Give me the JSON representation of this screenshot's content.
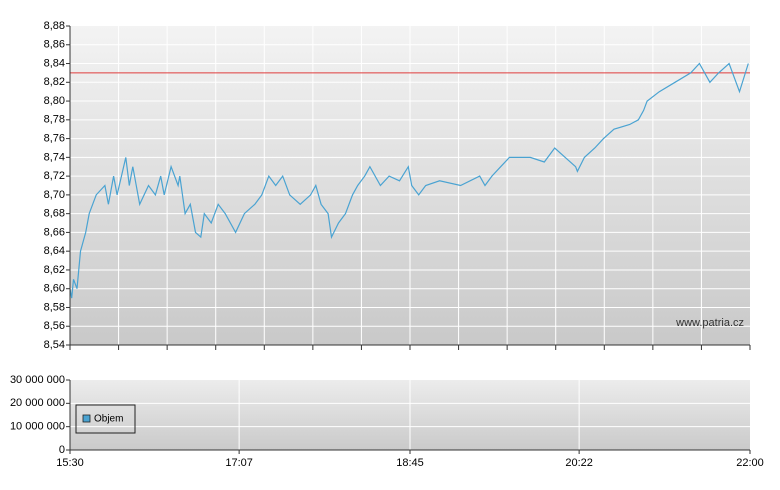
{
  "chart_data": [
    {
      "type": "line",
      "watermark": "www.patria.cz",
      "xlim": [
        "15:30",
        "22:00"
      ],
      "ylim": [
        8.54,
        8.88
      ],
      "yticks": [
        {
          "value": 8.54,
          "label": "8,54"
        },
        {
          "value": 8.56,
          "label": "8,56"
        },
        {
          "value": 8.58,
          "label": "8,58"
        },
        {
          "value": 8.6,
          "label": "8,60"
        },
        {
          "value": 8.62,
          "label": "8,62"
        },
        {
          "value": 8.64,
          "label": "8,64"
        },
        {
          "value": 8.66,
          "label": "8,66"
        },
        {
          "value": 8.68,
          "label": "8,68"
        },
        {
          "value": 8.7,
          "label": "8,70"
        },
        {
          "value": 8.72,
          "label": "8,72"
        },
        {
          "value": 8.74,
          "label": "8,74"
        },
        {
          "value": 8.76,
          "label": "8,76"
        },
        {
          "value": 8.78,
          "label": "8,78"
        },
        {
          "value": 8.8,
          "label": "8,80"
        },
        {
          "value": 8.82,
          "label": "8,82"
        },
        {
          "value": 8.84,
          "label": "8,84"
        },
        {
          "value": 8.86,
          "label": "8,86"
        },
        {
          "value": 8.88,
          "label": "8,88"
        }
      ],
      "grid": true,
      "reference_line": {
        "value": 8.83,
        "color": "#e03c3c"
      },
      "x": [
        "15:30",
        "15:31",
        "15:32",
        "15:34",
        "15:36",
        "15:39",
        "15:41",
        "15:45",
        "15:50",
        "15:52",
        "15:55",
        "15:57",
        "16:02",
        "16:04",
        "16:06",
        "16:10",
        "16:15",
        "16:19",
        "16:22",
        "16:24",
        "16:28",
        "16:32",
        "16:33",
        "16:36",
        "16:39",
        "16:42",
        "16:45",
        "16:47",
        "16:51",
        "16:55",
        "16:59",
        "17:05",
        "17:10",
        "17:16",
        "17:20",
        "17:24",
        "17:28",
        "17:32",
        "17:36",
        "17:42",
        "17:48",
        "17:51",
        "17:54",
        "17:58",
        "18:00",
        "18:04",
        "18:08",
        "18:12",
        "18:15",
        "18:19",
        "18:22",
        "18:28",
        "18:33",
        "18:39",
        "18:44",
        "18:46",
        "18:50",
        "18:54",
        "19:02",
        "19:14",
        "19:25",
        "19:28",
        "19:32",
        "19:37",
        "19:42",
        "19:54",
        "20:02",
        "20:08",
        "20:14",
        "20:20",
        "20:21",
        "20:25",
        "20:31",
        "20:36",
        "20:42",
        "20:51",
        "20:56",
        "20:59",
        "21:01",
        "21:08",
        "21:17",
        "21:26",
        "21:31",
        "21:37",
        "21:42",
        "21:48",
        "21:54",
        "21:59"
      ],
      "series": [
        {
          "color": "#4aa3d2",
          "values": [
            8.6,
            8.59,
            8.61,
            8.6,
            8.64,
            8.66,
            8.68,
            8.7,
            8.71,
            8.69,
            8.72,
            8.7,
            8.74,
            8.71,
            8.73,
            8.69,
            8.71,
            8.7,
            8.72,
            8.7,
            8.73,
            8.71,
            8.72,
            8.68,
            8.69,
            8.66,
            8.655,
            8.68,
            8.67,
            8.69,
            8.68,
            8.66,
            8.68,
            8.69,
            8.7,
            8.72,
            8.71,
            8.72,
            8.7,
            8.69,
            8.7,
            8.71,
            8.69,
            8.68,
            8.655,
            8.67,
            8.68,
            8.7,
            8.71,
            8.72,
            8.73,
            8.71,
            8.72,
            8.715,
            8.73,
            8.71,
            8.7,
            8.71,
            8.715,
            8.71,
            8.72,
            8.71,
            8.72,
            8.73,
            8.74,
            8.74,
            8.735,
            8.75,
            8.74,
            8.73,
            8.725,
            8.74,
            8.75,
            8.76,
            8.77,
            8.775,
            8.78,
            8.79,
            8.8,
            8.81,
            8.82,
            8.83,
            8.84,
            8.82,
            8.83,
            8.84,
            8.81,
            8.84
          ]
        }
      ]
    },
    {
      "type": "bar",
      "xlim": [
        "15:30",
        "22:00"
      ],
      "xticks": [
        "15:30",
        "17:07",
        "18:45",
        "20:22",
        "22:00"
      ],
      "ylim": [
        0,
        30000000
      ],
      "yticks": [
        0,
        {
          "value": 10000000,
          "label": "10 000 000"
        },
        {
          "value": 20000000,
          "label": "20 000 000"
        },
        {
          "value": 30000000,
          "label": "30 000 000"
        }
      ],
      "grid": true,
      "x": [],
      "series": [
        {
          "name": "Objem",
          "color": "#4aa3d2",
          "values": []
        }
      ]
    }
  ]
}
